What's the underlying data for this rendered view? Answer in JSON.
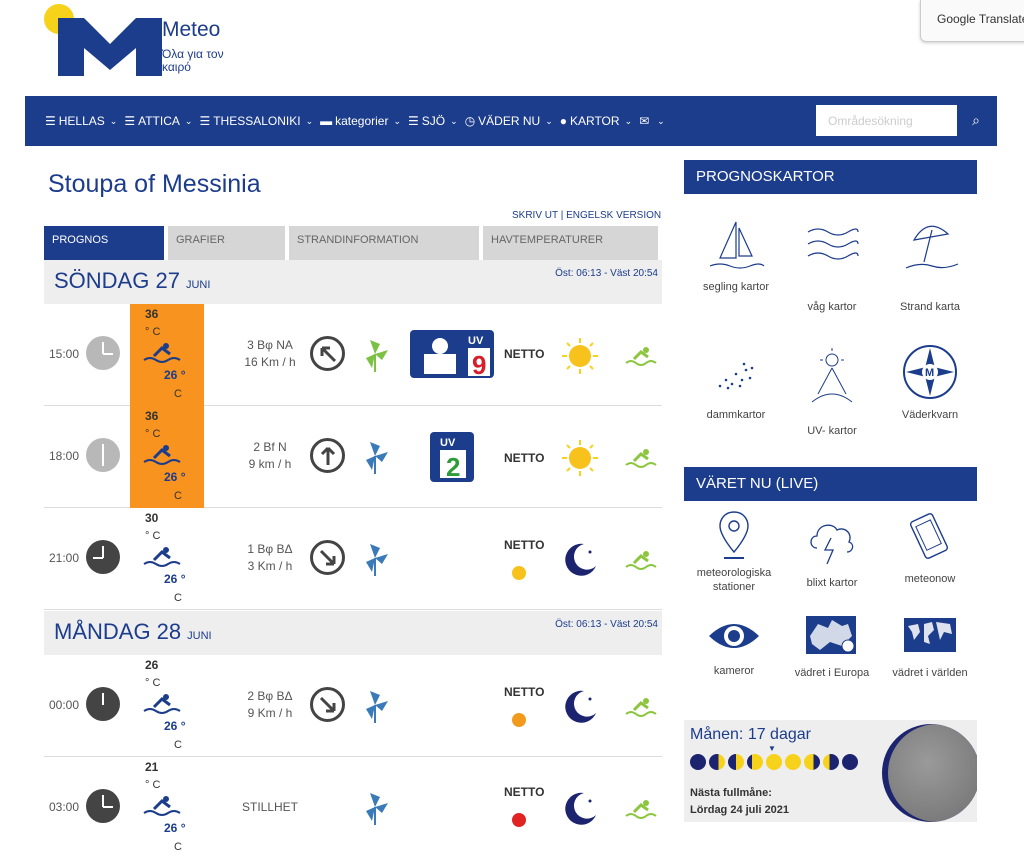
{
  "header": {
    "logo_title": "Meteo",
    "logo_subtitle": "Όλα για τον καιρό",
    "google_translate": "Google Translate"
  },
  "nav": {
    "items": [
      {
        "icon": "list-icon",
        "label": "HELLAS"
      },
      {
        "icon": "list-icon",
        "label": "ATTICA"
      },
      {
        "icon": "list-icon",
        "label": "THESSALONIKI"
      },
      {
        "icon": "card-icon",
        "label": "kategorier"
      },
      {
        "icon": "list-icon",
        "label": "SJÖ"
      },
      {
        "icon": "clock-icon",
        "label": "VÄDER NU"
      },
      {
        "icon": "pin-icon",
        "label": "KARTOR"
      },
      {
        "icon": "envelope-icon",
        "label": ""
      }
    ],
    "search_placeholder": "Områdesökning"
  },
  "main": {
    "title": "Stoupa of Messinia",
    "print_link": "SKRIV UT | ENGELSK VERSION",
    "tabs": [
      "PROGNOS",
      "GRAFIER",
      "STRANDINFORMATION",
      "HAVTEMPERATURER"
    ],
    "days": [
      {
        "name": "SÖNDAG 27",
        "month": "JUNI",
        "sun": "Öst: 06:13 - Väst 20:54"
      },
      {
        "name": "MÅNDAG 28",
        "month": "JUNI",
        "sun": "Öst: 06:13 - Väst 20:54"
      }
    ],
    "rows": [
      {
        "time": "15:00",
        "air_temp": "36",
        "air_unit": "° C",
        "sea_temp": "26",
        "sea_deg": "°",
        "sea_unit": "C",
        "wind_line1": "3 Bφ NA",
        "wind_line2": "16 Km / h",
        "uv": "9",
        "uv_label": "UV INDEX",
        "sky": "NETTO",
        "hot": true
      },
      {
        "time": "18:00",
        "air_temp": "36",
        "air_unit": "° C",
        "sea_temp": "26",
        "sea_deg": "°",
        "sea_unit": "C",
        "wind_line1": "2 Bf N",
        "wind_line2": "9 km / h",
        "uv": "2",
        "uv_label": "UV INDEX",
        "sky": "NETTO",
        "hot": true
      },
      {
        "time": "21:00",
        "air_temp": "30",
        "air_unit": "° C",
        "sea_temp": "26",
        "sea_deg": "°",
        "sea_unit": "C",
        "wind_line1": "1 Bφ BΔ",
        "wind_line2": "3 Km / h",
        "sky": "NETTO",
        "hot": false
      },
      {
        "time": "00:00",
        "air_temp": "26",
        "air_unit": "° C",
        "sea_temp": "26",
        "sea_deg": "°",
        "sea_unit": "C",
        "wind_line1": "2 Bφ BΔ",
        "wind_line2": "9 Km / h",
        "sky": "NETTO",
        "hot": false
      },
      {
        "time": "03:00",
        "air_temp": "21",
        "air_unit": "° C",
        "sea_temp": "26",
        "sea_deg": "°",
        "sea_unit": "C",
        "wind_line1": "STILLHET",
        "wind_line2": "",
        "sky": "NETTO",
        "hot": false
      }
    ]
  },
  "sidebar": {
    "forecast_head": "PROGNOSKARTOR",
    "forecast_items": [
      "segling kartor",
      "våg kartor",
      "Strand karta",
      "dammkartor",
      "UV- kartor",
      "Väderkvarn"
    ],
    "live_head": "VÄRET NU (LIVE)",
    "live_items": [
      "meteorologiska stationer",
      "blixt kartor",
      "meteonow",
      "kameror",
      "vädret i Europa",
      "vädret i världen"
    ],
    "moon": {
      "title": "Månen: 17 dagar",
      "next_label": "Nästa fullmåne:",
      "next_date": "Lördag 24 juli 2021"
    }
  },
  "colors": {
    "brand": "#1c3c8c",
    "hot": "#f7931e",
    "sun": "#f7d21b",
    "beach": "#8cc63f"
  }
}
